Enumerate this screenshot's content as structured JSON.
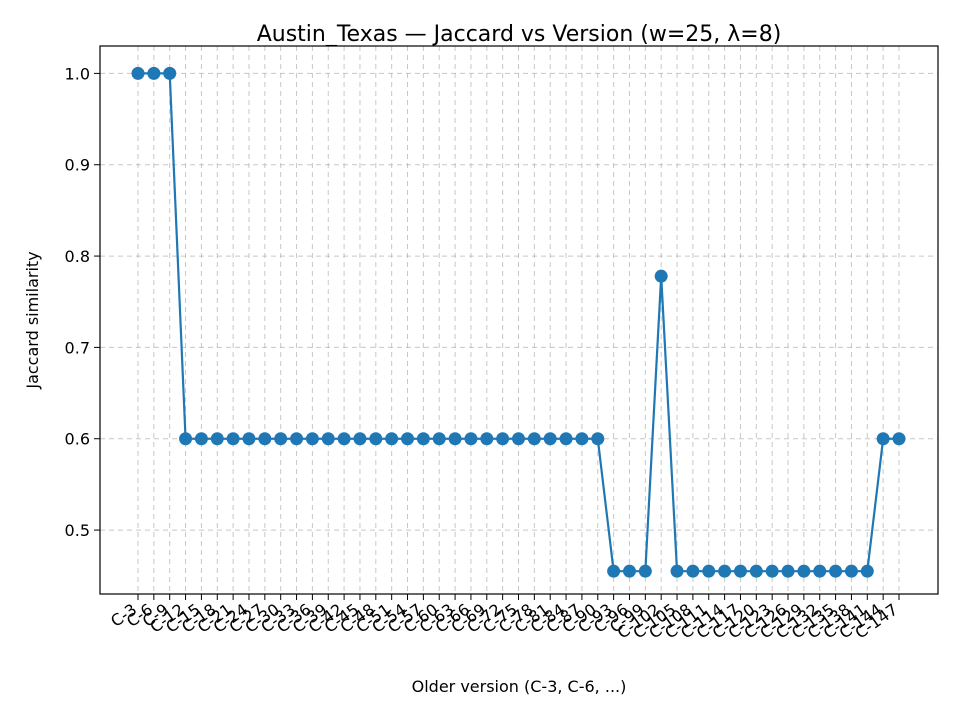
{
  "chart_data": {
    "type": "line",
    "title": "Austin_Texas — Jaccard vs Version (w=25, λ=8)",
    "xlabel": "Older version (C-3, C-6, ...)",
    "ylabel": "Jaccard similarity",
    "ylim": [
      0.43,
      1.03
    ],
    "yticks": [
      "0.5",
      "0.6",
      "0.7",
      "0.8",
      "0.9",
      "1.0"
    ],
    "grid": true,
    "marker": "circle",
    "categories": [
      "C-3",
      "C-6",
      "C-9",
      "C-12",
      "C-15",
      "C-18",
      "C-21",
      "C-24",
      "C-27",
      "C-30",
      "C-33",
      "C-36",
      "C-39",
      "C-42",
      "C-45",
      "C-48",
      "C-51",
      "C-54",
      "C-57",
      "C-60",
      "C-63",
      "C-66",
      "C-69",
      "C-72",
      "C-75",
      "C-78",
      "C-81",
      "C-84",
      "C-87",
      "C-90",
      "C-93",
      "C-96",
      "C-99",
      "C-102",
      "C-105",
      "C-108",
      "C-111",
      "C-114",
      "C-117",
      "C-120",
      "C-123",
      "C-126",
      "C-129",
      "C-132",
      "C-135",
      "C-138",
      "C-141",
      "C-144",
      "C-147"
    ],
    "series": [
      {
        "color": "#1f77b4",
        "values": [
          1.0,
          1.0,
          1.0,
          0.6,
          0.6,
          0.6,
          0.6,
          0.6,
          0.6,
          0.6,
          0.6,
          0.6,
          0.6,
          0.6,
          0.6,
          0.6,
          0.6,
          0.6,
          0.6,
          0.6,
          0.6,
          0.6,
          0.6,
          0.6,
          0.6,
          0.6,
          0.6,
          0.6,
          0.6,
          0.6,
          0.455,
          0.455,
          0.455,
          0.778,
          0.455,
          0.455,
          0.455,
          0.455,
          0.455,
          0.455,
          0.455,
          0.455,
          0.455,
          0.455,
          0.455,
          0.455,
          0.455,
          0.6,
          0.6
        ]
      }
    ]
  }
}
